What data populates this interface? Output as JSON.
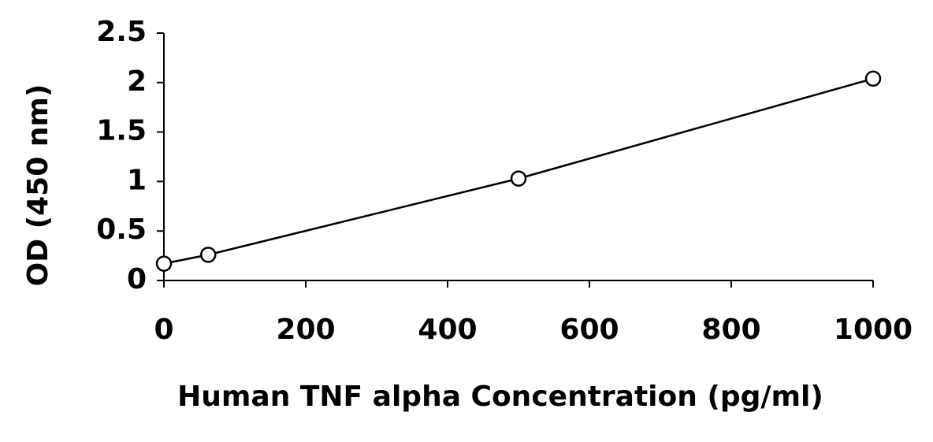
{
  "chart_data": {
    "type": "scatter",
    "line": true,
    "color": "#000000",
    "x_label": "Human TNF alpha Concentration (pg/ml)",
    "y_label": "OD (450 nm)",
    "x": [
      0,
      62.5,
      500,
      1000
    ],
    "values": [
      0.17,
      0.26,
      1.03,
      2.04
    ],
    "xlim": [
      0,
      1000
    ],
    "xticks": [
      0,
      200,
      400,
      600,
      800,
      1000
    ],
    "ylim": [
      0,
      2.5
    ],
    "yticks": [
      0,
      0.5,
      1,
      1.5,
      2,
      2.5
    ]
  }
}
